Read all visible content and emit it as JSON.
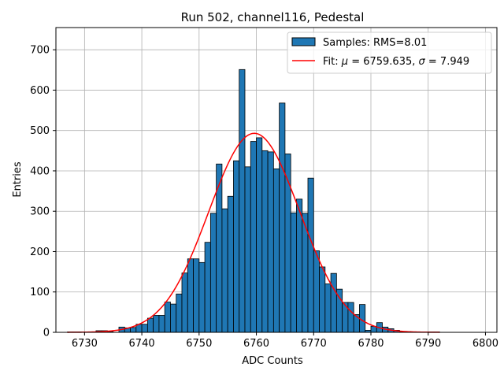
{
  "chart_data": {
    "type": "bar",
    "title": "Run 502, channel116, Pedestal",
    "xlabel": "ADC Counts",
    "ylabel": "Entries",
    "xlim": [
      6725,
      6802
    ],
    "ylim": [
      0,
      755
    ],
    "xticks": [
      6730,
      6740,
      6750,
      6760,
      6770,
      6780,
      6790,
      6800
    ],
    "yticks": [
      0,
      100,
      200,
      300,
      400,
      500,
      600,
      700
    ],
    "grid": true,
    "legend_position": "top-right",
    "histogram": {
      "name": "Samples: RMS=8.01",
      "color": "#1f77b4",
      "edgecolor": "#000000",
      "bin_start": 6727,
      "bin_width": 1,
      "counts": [
        1,
        1,
        1,
        0,
        0,
        4,
        4,
        2,
        0,
        13,
        11,
        12,
        20,
        20,
        35,
        42,
        42,
        75,
        70,
        95,
        147,
        182,
        182,
        173,
        223,
        295,
        417,
        306,
        337,
        425,
        651,
        410,
        473,
        482,
        450,
        447,
        405,
        568,
        442,
        296,
        330,
        295,
        382,
        202,
        162,
        120,
        146,
        107,
        74,
        74,
        44,
        69,
        5,
        15,
        24,
        13,
        9,
        5,
        2,
        2,
        1,
        1,
        0,
        1,
        1,
        0
      ]
    },
    "fit": {
      "name": "Fit: $\\mu$ = 6759.635, $\\sigma$ = 7.949",
      "label_prefix": "Fit: ",
      "mu_symbol": "μ",
      "mu_value": "= 6759.635,",
      "sigma_symbol": "σ",
      "sigma_value": "= 7.949",
      "mu": 6759.635,
      "sigma": 7.949,
      "amplitude": 493,
      "x_range": [
        6727,
        6792
      ],
      "color": "#ff0000"
    }
  }
}
